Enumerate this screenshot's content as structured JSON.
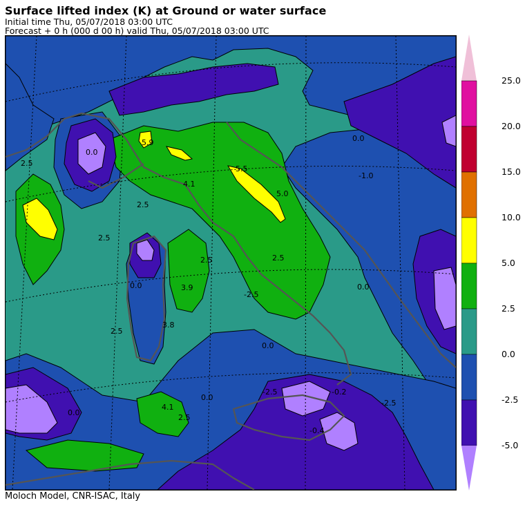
{
  "header": {
    "title": "Surface lifted index (K) at Ground or water surface",
    "initial_time": "Initial time  Thu, 05/07/2018  03:00 UTC",
    "forecast": "Forecast  +   0 h  (000 d 00 h)  valid Thu, 05/07/2018 03:00 UTC"
  },
  "footer": "Moloch Model, CNR-ISAC, Italy",
  "colorbar": {
    "labels": [
      "25.0",
      "20.0",
      "15.0",
      "10.0",
      "5.0",
      "2.5",
      "0.0",
      "-2.5",
      "-5.0"
    ],
    "colors": [
      "#f0c0d8",
      "#e010a0",
      "#c00030",
      "#e07000",
      "#ffff00",
      "#10b010",
      "#2a9a88",
      "#1e50b0",
      "#4010b0",
      "#b080ff"
    ]
  },
  "map": {
    "fill_colors": {
      "lt_minus5": "#b080ff",
      "minus5_minus2_5": "#4010b0",
      "minus2_5_0": "#1e50b0",
      "0_2_5": "#2a9a88",
      "2_5_5": "#10b010",
      "5_10": "#ffff00"
    },
    "contour_labels": [
      "5.9",
      "5.5",
      "5.0",
      "4.1",
      "2.5",
      "2.5",
      "2.5",
      "0.0",
      "0.0",
      "3.9",
      "3.8",
      "2.5",
      "4.1",
      "0.0",
      "2.5",
      "0.0",
      "2.5",
      "0.0",
      "-2.5",
      "-1.0",
      "0.0",
      "0.0",
      "-0.2",
      "-2.5",
      "-0.4",
      "2.5",
      "-2.5"
    ]
  }
}
